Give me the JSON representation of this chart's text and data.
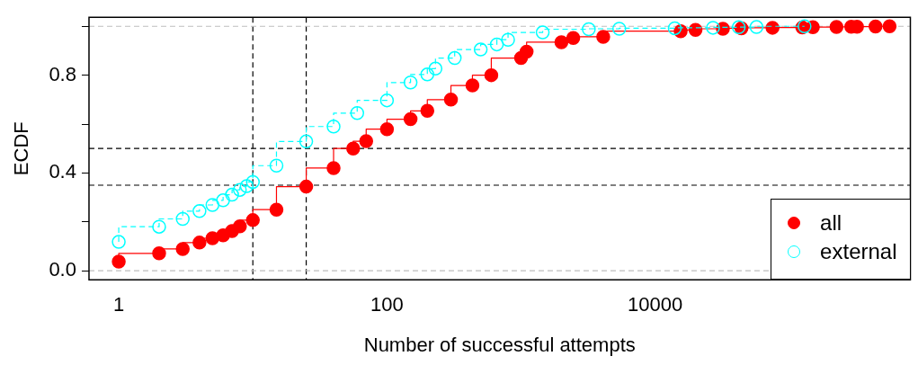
{
  "chart_data": {
    "type": "step",
    "xlabel": "Number of successful attempts",
    "ylabel": "ECDF",
    "log": "x",
    "grid": false,
    "legend": "bottom right",
    "marker": "circle",
    "xlim": [
      0.6,
      800000
    ],
    "xticks": [
      1,
      100,
      10000
    ],
    "ylim": [
      -0.037,
      1.037
    ],
    "yticks": [
      {
        "value": 0,
        "label": "0.0"
      },
      {
        "value": 0.2,
        "label": null
      },
      0.4,
      {
        "value": 0.6,
        "label": null
      },
      0.8,
      {
        "value": 1,
        "label": null
      }
    ],
    "ref_lines": [
      {
        "axis": "x",
        "value": 10,
        "color": "#000000",
        "line_style": "dashed"
      },
      {
        "axis": "x",
        "value": 25,
        "color": "#000000",
        "line_style": "dashed"
      },
      {
        "axis": "y",
        "value": 0.5,
        "color": "#000000",
        "line_style": "dashed"
      },
      {
        "axis": "y",
        "value": 0.35,
        "color": "#000000",
        "line_style": "dashed"
      },
      {
        "axis": "y",
        "value": 0,
        "color": "#bebebe",
        "line_style": "dashed"
      },
      {
        "axis": "y",
        "value": 1,
        "color": "#bebebe",
        "line_style": "dashed"
      }
    ],
    "series": [
      {
        "name": "all",
        "color": "#ff0000",
        "line_style": "solid",
        "x": [
          1,
          2,
          3,
          4,
          5,
          6,
          7,
          8,
          10,
          15,
          25,
          40,
          56,
          70,
          100,
          150,
          200,
          300,
          434,
          600,
          1000,
          1100,
          2000,
          2450,
          4100,
          15500,
          20000,
          32000,
          44000,
          75000,
          125000,
          150000,
          225000,
          290000,
          320000,
          440000,
          560000
        ],
        "values": [
          0.037,
          0.071,
          0.089,
          0.115,
          0.133,
          0.145,
          0.162,
          0.182,
          0.207,
          0.25,
          0.344,
          0.42,
          0.5,
          0.53,
          0.579,
          0.62,
          0.654,
          0.7,
          0.758,
          0.8,
          0.87,
          0.896,
          0.935,
          0.952,
          0.957,
          0.98,
          0.985,
          0.99,
          0.992,
          0.994,
          0.995,
          0.996,
          0.997,
          0.998,
          0.998,
          0.999,
          1
        ]
      },
      {
        "name": "external",
        "color": "#00ffff",
        "line_style": "dashed",
        "x": [
          1,
          2,
          3,
          4,
          5,
          6,
          7,
          8,
          9,
          10,
          15,
          25,
          40,
          60,
          100,
          150,
          200,
          230,
          320,
          500,
          660,
          800,
          1450,
          3200,
          5400,
          14000,
          27000,
          42000,
          57000,
          130000
        ],
        "values": [
          0.118,
          0.18,
          0.212,
          0.244,
          0.269,
          0.288,
          0.311,
          0.331,
          0.346,
          0.363,
          0.43,
          0.529,
          0.59,
          0.645,
          0.697,
          0.77,
          0.803,
          0.827,
          0.87,
          0.905,
          0.926,
          0.945,
          0.975,
          0.988,
          0.99,
          0.992,
          0.994,
          0.996,
          0.997,
          1
        ]
      }
    ]
  }
}
